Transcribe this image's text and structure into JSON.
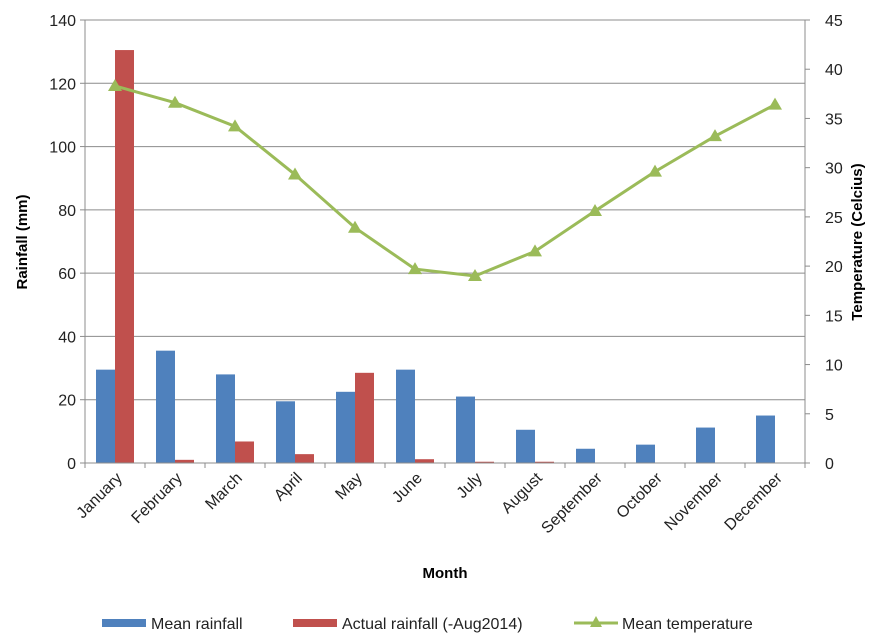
{
  "chart_data": {
    "type": "bar",
    "categories": [
      "January",
      "February",
      "March",
      "April",
      "May",
      "June",
      "July",
      "August",
      "September",
      "October",
      "November",
      "December"
    ],
    "series": [
      {
        "name": "Mean rainfall",
        "type": "bar",
        "axis": "left",
        "color": "#4f81bd",
        "values": [
          29.5,
          35.5,
          28,
          19.5,
          22.5,
          29.5,
          21,
          10.5,
          4.5,
          5.8,
          11.2,
          15
        ]
      },
      {
        "name": "Actual rainfall (-Aug2014)",
        "type": "bar",
        "axis": "left",
        "color": "#c0504d",
        "values": [
          130.5,
          1,
          6.8,
          2.8,
          28.5,
          1.2,
          0.4,
          0.4,
          null,
          null,
          null,
          null
        ]
      },
      {
        "name": "Mean temperature",
        "type": "line",
        "axis": "right",
        "color": "#9bbb59",
        "marker": "triangle",
        "values": [
          38.3,
          36.6,
          34.2,
          29.3,
          23.9,
          19.7,
          19,
          21.5,
          25.6,
          29.6,
          33.2,
          36.4
        ]
      }
    ],
    "xlabel": "Month",
    "ylabel": "Rainfall (mm)",
    "y2label": "Temperature (Celcius)",
    "ylim": [
      0,
      140
    ],
    "yticks": [
      0,
      20,
      40,
      60,
      80,
      100,
      120,
      140
    ],
    "y2lim": [
      0,
      45
    ],
    "y2ticks": [
      0,
      5,
      10,
      15,
      20,
      25,
      30,
      35,
      40,
      45
    ],
    "grid": true,
    "legend_position": "bottom"
  }
}
